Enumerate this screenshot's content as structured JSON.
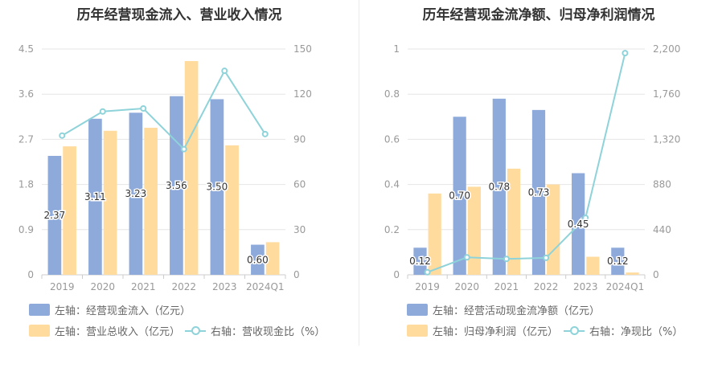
{
  "colors": {
    "bar1": "#8eaadb",
    "bar2": "#ffdb9e",
    "line": "#8ed3d9",
    "axis": "#999999",
    "grid": "#e6e6e6"
  },
  "chart_data": [
    {
      "type": "bar",
      "title": "历年经营现金流入、营业收入情况",
      "categories": [
        "2019",
        "2020",
        "2021",
        "2022",
        "2023",
        "2024Q1"
      ],
      "left_axis": {
        "ylim": [
          0,
          4.5
        ],
        "ticks": [
          "0",
          "0.9",
          "1.8",
          "2.7",
          "3.6",
          "4.5"
        ]
      },
      "right_axis": {
        "ylim": [
          0,
          150
        ],
        "ticks": [
          "0",
          "30",
          "60",
          "90",
          "120",
          "150"
        ]
      },
      "series": [
        {
          "name": "左轴：经营现金流入（亿元）",
          "kind": "bar",
          "axis": "left",
          "color": "#8eaadb",
          "values": [
            2.37,
            3.11,
            3.23,
            3.56,
            3.5,
            0.6
          ],
          "labels": [
            "2.37",
            "3.11",
            "3.23",
            "3.56",
            "3.50",
            "0.60"
          ]
        },
        {
          "name": "左轴：营业总收入（亿元）",
          "kind": "bar",
          "axis": "left",
          "color": "#ffdb9e",
          "values": [
            2.56,
            2.87,
            2.93,
            4.26,
            2.58,
            0.65
          ]
        },
        {
          "name": "右轴：营收现金比（%）",
          "kind": "line",
          "axis": "right",
          "color": "#8ed3d9",
          "values": [
            92.5,
            108.5,
            110.5,
            83.5,
            135.5,
            93.5
          ]
        }
      ]
    },
    {
      "type": "bar",
      "title": "历年经营现金流净额、归母净利润情况",
      "categories": [
        "2019",
        "2020",
        "2021",
        "2022",
        "2023",
        "2024Q1"
      ],
      "left_axis": {
        "ylim": [
          0,
          1
        ],
        "ticks": [
          "0",
          "0.2",
          "0.4",
          "0.6",
          "0.8",
          "1"
        ]
      },
      "right_axis": {
        "ylim": [
          0,
          2200
        ],
        "ticks": [
          "0",
          "440",
          "880",
          "1,320",
          "1,760",
          "2,200"
        ]
      },
      "series": [
        {
          "name": "左轴：经营活动现金流净额（亿元）",
          "kind": "bar",
          "axis": "left",
          "color": "#8eaadb",
          "values": [
            0.12,
            0.7,
            0.78,
            0.73,
            0.45,
            0.12
          ],
          "labels": [
            "0.12",
            "0.70",
            "0.78",
            "0.73",
            "0.45",
            "0.12"
          ]
        },
        {
          "name": "左轴：归母净利润（亿元）",
          "kind": "bar",
          "axis": "left",
          "color": "#ffdb9e",
          "values": [
            0.36,
            0.39,
            0.47,
            0.4,
            0.08,
            0.01
          ]
        },
        {
          "name": "右轴：净现比（%）",
          "kind": "line",
          "axis": "right",
          "color": "#8ed3d9",
          "values": [
            25,
            170,
            155,
            165,
            555,
            2160
          ]
        }
      ]
    }
  ]
}
